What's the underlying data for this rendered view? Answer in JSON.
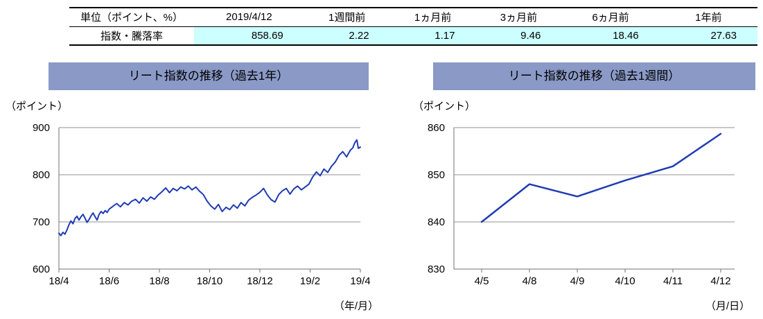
{
  "colors": {
    "title_bar_bg": "#8a99c6",
    "table_highlight_bg": "#ccffff",
    "line_blue": "#1f3bb3"
  },
  "table": {
    "unit_header": "単位（ポイント、%）",
    "columns": [
      "2019/4/12",
      "1週間前",
      "1ヵ月前",
      "3ヵ月前",
      "6ヵ月前",
      "1年前"
    ],
    "row_label": "指数・騰落率",
    "values": [
      "858.69",
      "2.22",
      "1.17",
      "9.46",
      "18.46",
      "27.63"
    ]
  },
  "chart_data": [
    {
      "type": "line",
      "title": "リート指数の推移（過去1年）",
      "unit_label": "（ポイント）",
      "xaxis_label": "（年/月）",
      "ylim": [
        600,
        900
      ],
      "yticks": [
        600,
        700,
        800,
        900
      ],
      "xlim": [
        0,
        12
      ],
      "xticks": [
        {
          "pos": 0,
          "label": "18/4"
        },
        {
          "pos": 2,
          "label": "18/6"
        },
        {
          "pos": 4,
          "label": "18/8"
        },
        {
          "pos": 6,
          "label": "18/10"
        },
        {
          "pos": 8,
          "label": "18/12"
        },
        {
          "pos": 10,
          "label": "19/2"
        },
        {
          "pos": 12,
          "label": "19/4"
        }
      ],
      "grid": true,
      "legend": "none",
      "series": [
        {
          "name": "リート指数（過去1年）",
          "x": [
            0,
            0.08,
            0.16,
            0.24,
            0.32,
            0.4,
            0.48,
            0.56,
            0.64,
            0.72,
            0.8,
            0.88,
            0.96,
            1.04,
            1.12,
            1.2,
            1.28,
            1.36,
            1.44,
            1.52,
            1.6,
            1.68,
            1.76,
            1.84,
            1.92,
            2.0,
            2.15,
            2.3,
            2.45,
            2.6,
            2.75,
            2.9,
            3.05,
            3.2,
            3.35,
            3.5,
            3.65,
            3.8,
            3.95,
            4.1,
            4.25,
            4.4,
            4.55,
            4.7,
            4.85,
            5.0,
            5.15,
            5.3,
            5.45,
            5.6,
            5.75,
            5.9,
            6.05,
            6.2,
            6.35,
            6.5,
            6.65,
            6.8,
            6.95,
            7.1,
            7.25,
            7.4,
            7.55,
            7.7,
            7.85,
            8.0,
            8.15,
            8.3,
            8.45,
            8.6,
            8.75,
            8.9,
            9.05,
            9.2,
            9.35,
            9.5,
            9.65,
            9.8,
            9.95,
            10.1,
            10.25,
            10.4,
            10.55,
            10.7,
            10.85,
            11.0,
            11.15,
            11.3,
            11.45,
            11.6,
            11.7,
            11.78,
            11.86,
            11.92,
            12.0
          ],
          "y": [
            676,
            671,
            678,
            674,
            683,
            694,
            702,
            696,
            707,
            712,
            704,
            711,
            716,
            708,
            699,
            705,
            713,
            719,
            711,
            704,
            716,
            722,
            718,
            724,
            720,
            727,
            733,
            739,
            732,
            741,
            736,
            744,
            748,
            740,
            751,
            744,
            753,
            748,
            757,
            764,
            772,
            762,
            771,
            766,
            774,
            770,
            776,
            768,
            774,
            765,
            758,
            744,
            734,
            727,
            737,
            722,
            731,
            726,
            736,
            729,
            741,
            734,
            746,
            752,
            757,
            763,
            771,
            757,
            747,
            742,
            758,
            766,
            771,
            759,
            770,
            776,
            768,
            774,
            780,
            795,
            806,
            798,
            812,
            805,
            818,
            827,
            841,
            849,
            838,
            852,
            857,
            868,
            874,
            856,
            858.69
          ]
        }
      ]
    },
    {
      "type": "line",
      "title": "リート指数の推移（過去1週間）",
      "unit_label": "（ポイント）",
      "xaxis_label": "（月/日）",
      "ylim": [
        830,
        860
      ],
      "yticks": [
        830,
        840,
        850,
        860
      ],
      "grid": true,
      "legend": "none",
      "categories": [
        "4/5",
        "4/8",
        "4/9",
        "4/10",
        "4/11",
        "4/12"
      ],
      "values": [
        840.0,
        848.0,
        845.4,
        848.8,
        851.8,
        858.69
      ]
    }
  ]
}
